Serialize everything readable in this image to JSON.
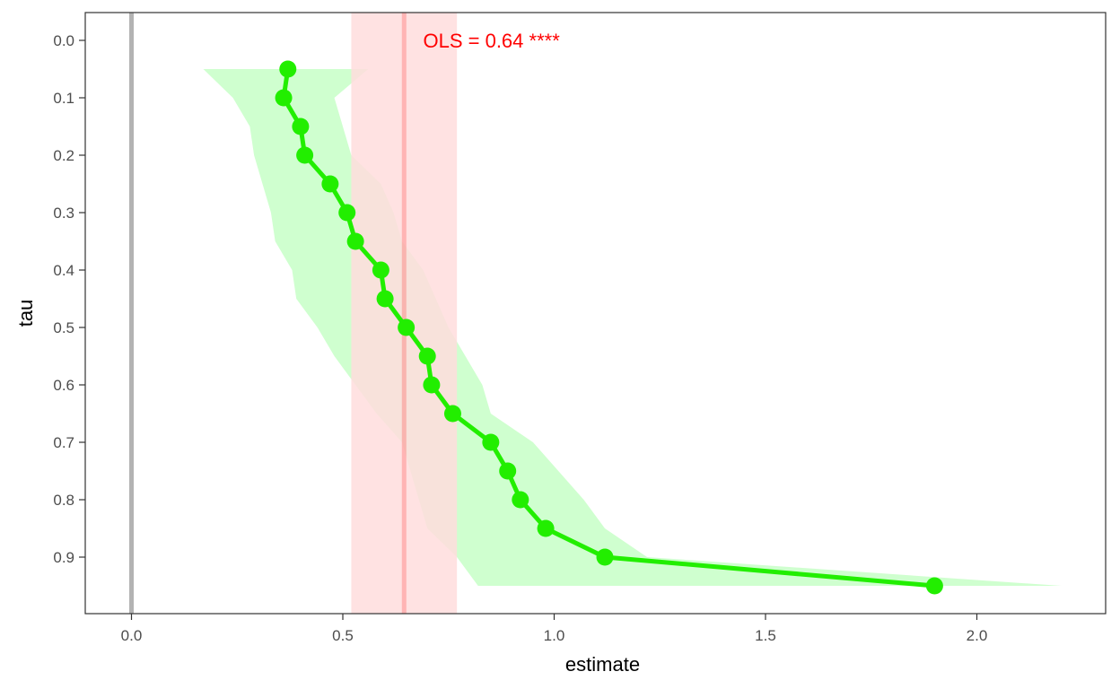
{
  "chart_data": {
    "type": "line",
    "title": "",
    "xlabel": "estimate",
    "ylabel": "tau",
    "xlim": [
      -0.11,
      2.32
    ],
    "ylim": [
      0.0,
      0.9
    ],
    "y_reversed": true,
    "x_ticks": [
      0.0,
      0.5,
      1.0,
      1.5,
      2.0
    ],
    "x_tick_labels": [
      "0.0",
      "0.5",
      "1.0",
      "1.5",
      "2.0"
    ],
    "y_ticks": [
      0.0,
      0.1,
      0.2,
      0.3,
      0.4,
      0.5,
      0.6,
      0.7,
      0.8,
      0.9
    ],
    "y_tick_labels": [
      "0.0",
      "0.1",
      "0.2",
      "0.3",
      "0.4",
      "0.5",
      "0.6",
      "0.7",
      "0.8",
      "0.9"
    ],
    "grid": false,
    "series": [
      {
        "color": "#22ee00",
        "points": [
          {
            "tau": 0.05,
            "estimate": 0.37
          },
          {
            "tau": 0.1,
            "estimate": 0.36
          },
          {
            "tau": 0.15,
            "estimate": 0.4
          },
          {
            "tau": 0.2,
            "estimate": 0.41
          },
          {
            "tau": 0.25,
            "estimate": 0.47
          },
          {
            "tau": 0.3,
            "estimate": 0.51
          },
          {
            "tau": 0.35,
            "estimate": 0.53
          },
          {
            "tau": 0.4,
            "estimate": 0.59
          },
          {
            "tau": 0.45,
            "estimate": 0.6
          },
          {
            "tau": 0.5,
            "estimate": 0.65
          },
          {
            "tau": 0.55,
            "estimate": 0.7
          },
          {
            "tau": 0.6,
            "estimate": 0.71
          },
          {
            "tau": 0.65,
            "estimate": 0.76
          },
          {
            "tau": 0.7,
            "estimate": 0.85
          },
          {
            "tau": 0.75,
            "estimate": 0.89
          },
          {
            "tau": 0.8,
            "estimate": 0.92
          },
          {
            "tau": 0.85,
            "estimate": 0.98
          },
          {
            "tau": 0.9,
            "estimate": 1.12
          },
          {
            "tau": 0.95,
            "estimate": 1.9
          }
        ],
        "ci_lower": [
          0.17,
          0.24,
          0.28,
          0.29,
          0.31,
          0.33,
          0.34,
          0.38,
          0.39,
          0.44,
          0.48,
          0.53,
          0.58,
          0.64,
          0.66,
          0.68,
          0.7,
          0.77,
          0.82
        ],
        "ci_upper": [
          0.56,
          0.48,
          0.5,
          0.52,
          0.59,
          0.62,
          0.64,
          0.69,
          0.72,
          0.75,
          0.79,
          0.83,
          0.85,
          0.95,
          1.01,
          1.07,
          1.12,
          1.22,
          2.2
        ],
        "ci_color": "#ccffcc"
      }
    ],
    "zero_line": {
      "x": 0.0,
      "color": "#b3b3b3"
    },
    "ols": {
      "estimate": 0.645,
      "ci": [
        0.52,
        0.77
      ],
      "color": "#ff0000",
      "band_color": "#ffdddd",
      "annotation": "OLS =  0.64 ****",
      "annotation_x": 0.69,
      "annotation_y": 0.0
    }
  }
}
